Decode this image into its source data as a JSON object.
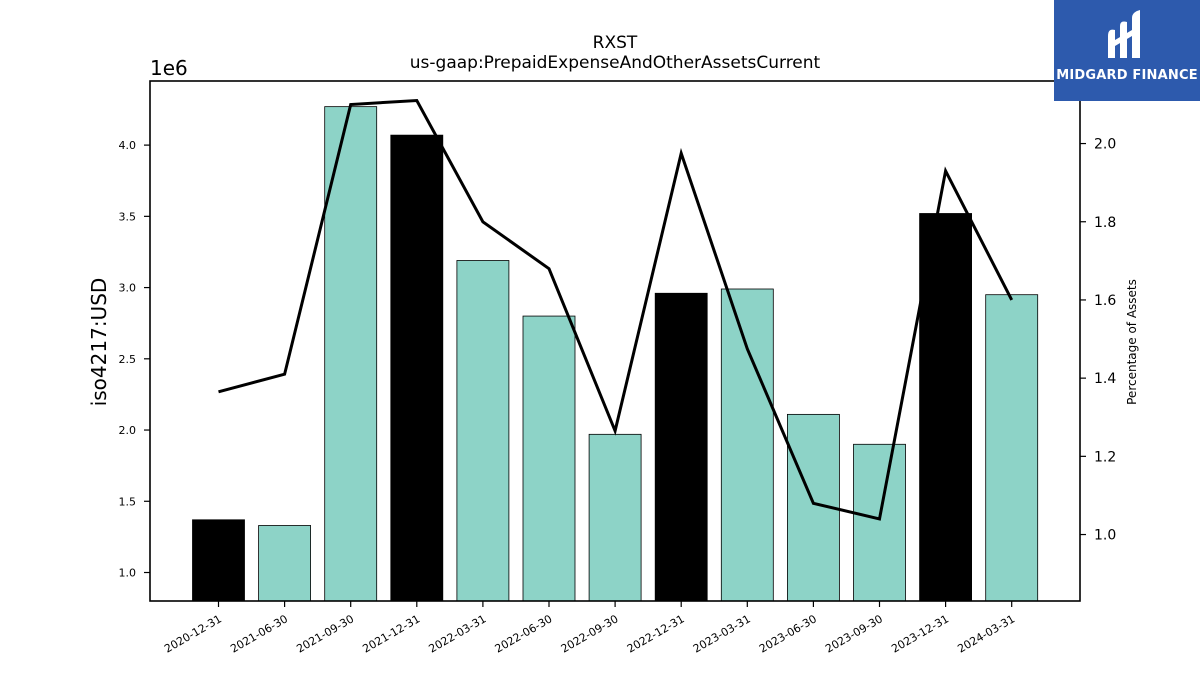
{
  "chart_data": {
    "type": "bar",
    "title": "RXST",
    "subtitle": "us-gaap:PrepaidExpenseAndOtherAssetsCurrent",
    "ylabel": "iso4217:USD",
    "y2label": "Percentage of Assets",
    "y_offset_label": "1e6",
    "categories": [
      "2020-12-31",
      "2021-06-30",
      "2021-09-30",
      "2021-12-31",
      "2022-03-31",
      "2022-06-30",
      "2022-09-30",
      "2022-12-31",
      "2023-03-31",
      "2023-06-30",
      "2023-09-30",
      "2023-12-31",
      "2024-03-31"
    ],
    "series": [
      {
        "type": "bar",
        "values": [
          1.37,
          1.33,
          4.27,
          4.07,
          3.19,
          2.8,
          1.97,
          2.96,
          2.99,
          2.11,
          1.9,
          3.52,
          2.95
        ],
        "colors": [
          "#000000",
          "#8dd3c7",
          "#8dd3c7",
          "#000000",
          "#8dd3c7",
          "#8dd3c7",
          "#8dd3c7",
          "#000000",
          "#8dd3c7",
          "#8dd3c7",
          "#8dd3c7",
          "#000000",
          "#8dd3c7"
        ]
      },
      {
        "type": "line",
        "axis": "right",
        "values": [
          1.365,
          1.41,
          2.1,
          2.11,
          1.8,
          1.68,
          1.265,
          1.975,
          1.475,
          1.08,
          1.04,
          1.93,
          1.6
        ],
        "color": "#000000"
      }
    ],
    "ylim": [
      0.8,
      4.45
    ],
    "y2lim": [
      0.83,
      2.16
    ],
    "yticks": [
      "1.0",
      "1.5",
      "2.0",
      "2.5",
      "3.0",
      "3.5",
      "4.0"
    ],
    "y2ticks": [
      "1.0",
      "1.2",
      "1.4",
      "1.6",
      "1.8",
      "2.0"
    ],
    "grid": false,
    "legend": "none"
  },
  "logo": {
    "text": "MIDGARD FINANCE",
    "color": "#2d5aad"
  }
}
